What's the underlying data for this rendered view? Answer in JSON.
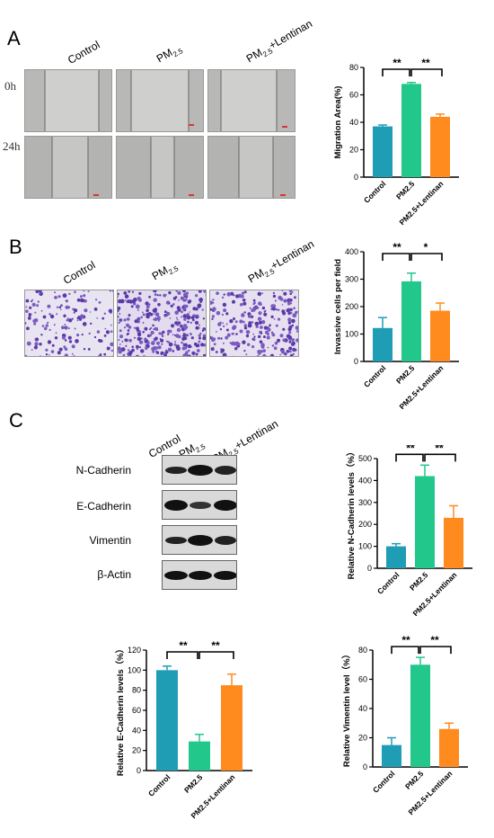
{
  "panels": {
    "a": "A",
    "b": "B",
    "c": "C"
  },
  "groups_a": {
    "control": "Control",
    "pm": "PM",
    "pm_len": "PM",
    "sub": "2.5",
    "len_suffix": "+Lentinan"
  },
  "time": {
    "t0": "0h",
    "t24": "24h"
  },
  "western_blot": {
    "rows": [
      "N-Cadherin",
      "E-Cadherin",
      "Vimentin",
      "β-Actin"
    ]
  },
  "colors": {
    "control": "#1f9db5",
    "pm": "#22c78b",
    "lentinan": "#ff8a1e"
  },
  "chart_data": [
    {
      "id": "migration",
      "type": "bar",
      "categories": [
        "Control",
        "PM2.5",
        "PM2.5+Lentinan"
      ],
      "values": [
        37,
        68,
        44
      ],
      "errors": [
        1,
        1,
        2
      ],
      "ylabel": "Migration Area(%)",
      "ylim": [
        0,
        80
      ],
      "yticks": [
        "0",
        "20",
        "40",
        "60",
        "80"
      ],
      "ytick_values": [
        0,
        20,
        40,
        60,
        80
      ],
      "significance": [
        "**",
        "**"
      ]
    },
    {
      "id": "invasion",
      "type": "bar",
      "categories": [
        "Control",
        "PM2.5",
        "PM2.5+Lentinan"
      ],
      "values": [
        122,
        292,
        185
      ],
      "errors": [
        38,
        30,
        28
      ],
      "ylabel": "Invassive cells per field",
      "ylim": [
        0,
        400
      ],
      "yticks": [
        "0",
        "100",
        "200",
        "300",
        "400"
      ],
      "ytick_values": [
        0,
        100,
        200,
        300,
        400
      ],
      "significance": [
        "**",
        "*"
      ]
    },
    {
      "id": "ncad",
      "type": "bar",
      "categories": [
        "Control",
        "PM2.5",
        "PM2.5+Lentinan"
      ],
      "values": [
        100,
        420,
        230
      ],
      "errors": [
        12,
        50,
        55
      ],
      "ylabel": "Relative N-Cadherin levels（%）",
      "ylim": [
        0,
        500
      ],
      "yticks": [
        "0",
        "100",
        "200",
        "300",
        "400",
        "500"
      ],
      "ytick_values": [
        0,
        100,
        200,
        300,
        400,
        500
      ],
      "significance": [
        "**",
        "**"
      ]
    },
    {
      "id": "ecad",
      "type": "bar",
      "categories": [
        "Control",
        "PM2.5",
        "PM2.5+Lentinan"
      ],
      "values": [
        100,
        29,
        85
      ],
      "errors": [
        4,
        7,
        11
      ],
      "ylabel": "Relative E-Cadherin levels（%）",
      "ylim": [
        0,
        120
      ],
      "yticks": [
        "0",
        "20",
        "40",
        "60",
        "80",
        "100",
        "120"
      ],
      "ytick_values": [
        0,
        20,
        40,
        60,
        80,
        100,
        120
      ],
      "significance": [
        "**",
        "**"
      ]
    },
    {
      "id": "vim",
      "type": "bar",
      "categories": [
        "Control",
        "PM2.5",
        "PM2.5+Lentinan"
      ],
      "values": [
        15,
        70,
        26
      ],
      "errors": [
        5,
        5,
        4
      ],
      "ylabel": "Relative Vimentin level（%）",
      "ylim": [
        0,
        80
      ],
      "yticks": [
        "0",
        "20",
        "40",
        "60",
        "80"
      ],
      "ytick_values": [
        0,
        20,
        40,
        60,
        80
      ],
      "significance": [
        "**",
        "**"
      ]
    }
  ]
}
